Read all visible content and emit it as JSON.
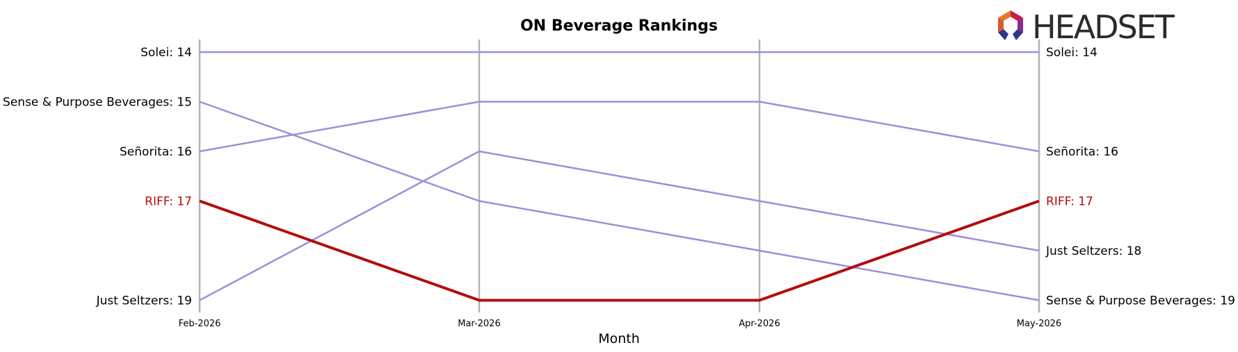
{
  "chart_data": {
    "type": "line",
    "title": "ON Beverage Rankings",
    "xlabel": "Month",
    "ylabel": "",
    "categories": [
      "Feb-2026",
      "Mar-2026",
      "Apr-2026",
      "May-2026"
    ],
    "y_inverted": true,
    "ylim": [
      14,
      19
    ],
    "grid": "vertical lines at each month",
    "series": [
      {
        "name": "Solei",
        "values": [
          14,
          14,
          14,
          14
        ],
        "color": "#9b8fd8",
        "highlight": false
      },
      {
        "name": "Sense & Purpose Beverages",
        "values": [
          15,
          17,
          18,
          19
        ],
        "color": "#9b8fd8",
        "highlight": false
      },
      {
        "name": "Señorita",
        "values": [
          16,
          15,
          15,
          16
        ],
        "color": "#9b8fd8",
        "highlight": false
      },
      {
        "name": "RIFF",
        "values": [
          17,
          19,
          19,
          17
        ],
        "color": "#b30c0c",
        "highlight": true
      },
      {
        "name": "Just Seltzers",
        "values": [
          19,
          16,
          17,
          18
        ],
        "color": "#9b8fd8",
        "highlight": false
      }
    ],
    "left_labels": [
      {
        "text": "Solei: 14",
        "highlight": false
      },
      {
        "text": "Sense & Purpose Beverages: 15",
        "highlight": false
      },
      {
        "text": "Señorita: 16",
        "highlight": false
      },
      {
        "text": "RIFF: 17",
        "highlight": true
      },
      {
        "text": "Just Seltzers: 19",
        "highlight": false
      }
    ],
    "right_labels": [
      {
        "text": "Solei: 14",
        "highlight": false
      },
      {
        "text": "Señorita: 16",
        "highlight": false
      },
      {
        "text": "RIFF: 17",
        "highlight": true
      },
      {
        "text": "Just Seltzers: 18",
        "highlight": false
      },
      {
        "text": "Sense & Purpose Beverages: 19",
        "highlight": false
      }
    ]
  },
  "brand": {
    "logo_text": "HEADSET",
    "logo_icon": "headset-hexagon-icon",
    "colors": [
      "#e8742a",
      "#c41e4a",
      "#8a2a8a",
      "#2a3a8a"
    ]
  }
}
